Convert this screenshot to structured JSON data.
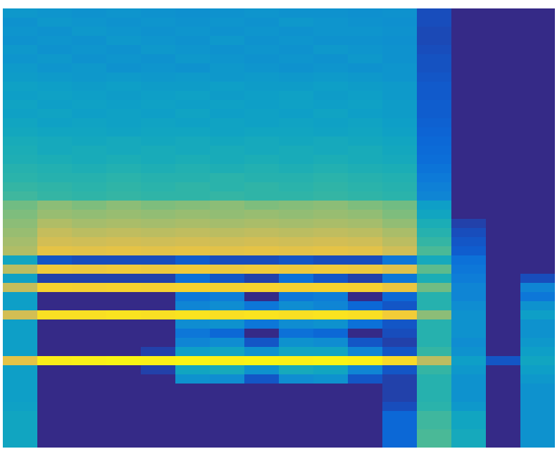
{
  "chart_data": {
    "type": "heatmap",
    "tick_labels": false,
    "clim": [
      0,
      100
    ],
    "cells": [
      [
        32,
        31,
        30,
        31,
        30,
        29,
        30,
        31,
        30,
        30,
        29,
        30,
        8,
        0,
        0,
        0
      ],
      [
        30,
        32,
        31,
        30,
        31,
        30,
        31,
        30,
        32,
        31,
        30,
        29,
        8,
        0,
        0,
        0
      ],
      [
        31,
        30,
        32,
        31,
        30,
        31,
        30,
        31,
        30,
        31,
        31,
        30,
        7,
        0,
        0,
        0
      ],
      [
        30,
        31,
        30,
        32,
        31,
        30,
        32,
        30,
        31,
        30,
        30,
        29,
        7,
        0,
        0,
        0
      ],
      [
        32,
        30,
        31,
        30,
        32,
        31,
        30,
        31,
        30,
        32,
        31,
        30,
        8,
        0,
        0,
        0
      ],
      [
        31,
        32,
        30,
        31,
        30,
        32,
        31,
        30,
        31,
        30,
        32,
        30,
        9,
        0,
        0,
        0
      ],
      [
        33,
        31,
        32,
        30,
        31,
        30,
        32,
        31,
        30,
        31,
        30,
        31,
        9,
        0,
        0,
        0
      ],
      [
        34,
        33,
        32,
        33,
        32,
        33,
        32,
        33,
        32,
        33,
        32,
        31,
        10,
        0,
        0,
        0
      ],
      [
        36,
        35,
        34,
        35,
        34,
        34,
        35,
        34,
        34,
        35,
        34,
        33,
        11,
        0,
        0,
        0
      ],
      [
        35,
        36,
        35,
        34,
        35,
        36,
        34,
        35,
        36,
        34,
        35,
        33,
        11,
        0,
        0,
        0
      ],
      [
        37,
        35,
        36,
        35,
        36,
        35,
        36,
        35,
        36,
        35,
        36,
        34,
        12,
        0,
        0,
        0
      ],
      [
        36,
        37,
        35,
        36,
        35,
        37,
        35,
        36,
        35,
        37,
        35,
        34,
        12,
        0,
        0,
        0
      ],
      [
        38,
        36,
        37,
        36,
        37,
        36,
        37,
        36,
        37,
        36,
        37,
        35,
        13,
        0,
        0,
        0
      ],
      [
        39,
        38,
        38,
        37,
        38,
        38,
        37,
        38,
        38,
        37,
        38,
        36,
        14,
        0,
        0,
        0
      ],
      [
        41,
        40,
        39,
        40,
        39,
        40,
        39,
        40,
        39,
        40,
        39,
        38,
        15,
        0,
        0,
        0
      ],
      [
        42,
        40,
        41,
        40,
        41,
        40,
        41,
        40,
        41,
        40,
        41,
        39,
        16,
        0,
        0,
        0
      ],
      [
        43,
        42,
        41,
        42,
        41,
        42,
        41,
        42,
        41,
        42,
        41,
        40,
        17,
        0,
        0,
        0
      ],
      [
        45,
        44,
        43,
        44,
        43,
        44,
        43,
        44,
        43,
        44,
        43,
        42,
        19,
        0,
        0,
        0
      ],
      [
        46,
        45,
        45,
        46,
        45,
        45,
        46,
        45,
        45,
        46,
        45,
        44,
        21,
        0,
        0,
        0
      ],
      [
        48,
        47,
        46,
        47,
        46,
        47,
        46,
        47,
        46,
        47,
        46,
        45,
        23,
        0,
        0,
        0
      ],
      [
        50,
        48,
        47,
        48,
        47,
        47,
        48,
        47,
        47,
        48,
        47,
        46,
        25,
        0,
        0,
        0
      ],
      [
        58,
        62,
        60,
        62,
        60,
        61,
        62,
        60,
        61,
        62,
        60,
        58,
        35,
        0,
        0,
        0
      ],
      [
        60,
        64,
        63,
        64,
        63,
        64,
        63,
        64,
        63,
        64,
        63,
        60,
        38,
        0,
        0,
        0
      ],
      [
        62,
        68,
        66,
        67,
        66,
        67,
        66,
        67,
        66,
        67,
        66,
        63,
        42,
        5,
        0,
        0
      ],
      [
        64,
        72,
        70,
        71,
        70,
        71,
        70,
        71,
        70,
        71,
        70,
        67,
        45,
        8,
        0,
        0
      ],
      [
        66,
        75,
        74,
        75,
        74,
        75,
        74,
        75,
        74,
        75,
        74,
        70,
        48,
        10,
        0,
        0
      ],
      [
        68,
        80,
        79,
        80,
        79,
        80,
        79,
        80,
        79,
        80,
        79,
        74,
        52,
        12,
        0,
        0
      ],
      [
        38,
        10,
        8,
        8,
        8,
        12,
        8,
        8,
        10,
        8,
        8,
        20,
        40,
        18,
        0,
        0
      ],
      [
        70,
        84,
        83,
        84,
        83,
        84,
        83,
        84,
        83,
        84,
        83,
        78,
        55,
        20,
        0,
        0
      ],
      [
        36,
        5,
        5,
        5,
        5,
        18,
        10,
        5,
        18,
        10,
        5,
        20,
        42,
        22,
        0,
        8
      ],
      [
        72,
        88,
        87,
        88,
        87,
        88,
        87,
        88,
        87,
        88,
        87,
        82,
        58,
        25,
        0,
        25
      ],
      [
        35,
        0,
        0,
        0,
        0,
        20,
        22,
        0,
        20,
        22,
        0,
        15,
        45,
        25,
        0,
        20
      ],
      [
        35,
        0,
        0,
        0,
        0,
        25,
        28,
        20,
        28,
        25,
        15,
        10,
        45,
        28,
        0,
        30
      ],
      [
        75,
        92,
        92,
        93,
        92,
        93,
        92,
        93,
        92,
        93,
        92,
        85,
        62,
        30,
        0,
        35
      ],
      [
        35,
        0,
        0,
        0,
        0,
        28,
        30,
        20,
        28,
        30,
        18,
        10,
        45,
        30,
        0,
        30
      ],
      [
        35,
        0,
        0,
        0,
        0,
        20,
        15,
        0,
        18,
        15,
        0,
        8,
        45,
        30,
        0,
        30
      ],
      [
        35,
        0,
        0,
        0,
        0,
        25,
        28,
        10,
        30,
        28,
        10,
        5,
        45,
        28,
        0,
        32
      ],
      [
        35,
        0,
        0,
        0,
        5,
        35,
        38,
        30,
        38,
        38,
        25,
        10,
        48,
        30,
        0,
        35
      ],
      [
        80,
        96,
        97,
        98,
        97,
        98,
        97,
        98,
        97,
        98,
        97,
        90,
        70,
        35,
        10,
        38
      ],
      [
        35,
        0,
        0,
        0,
        5,
        38,
        40,
        30,
        40,
        38,
        25,
        10,
        48,
        32,
        0,
        35
      ],
      [
        35,
        0,
        0,
        0,
        0,
        30,
        28,
        10,
        28,
        30,
        10,
        5,
        45,
        30,
        0,
        32
      ],
      [
        35,
        0,
        0,
        0,
        0,
        0,
        0,
        0,
        0,
        0,
        0,
        5,
        45,
        30,
        0,
        30
      ],
      [
        35,
        0,
        0,
        0,
        0,
        0,
        0,
        0,
        0,
        0,
        0,
        5,
        45,
        30,
        0,
        30
      ],
      [
        36,
        0,
        0,
        0,
        0,
        0,
        0,
        0,
        0,
        0,
        0,
        8,
        46,
        32,
        0,
        30
      ],
      [
        38,
        0,
        0,
        0,
        0,
        0,
        0,
        0,
        0,
        0,
        0,
        15,
        50,
        38,
        0,
        30
      ],
      [
        38,
        0,
        0,
        0,
        0,
        0,
        0,
        0,
        0,
        0,
        0,
        15,
        50,
        38,
        0,
        30
      ],
      [
        38,
        0,
        0,
        0,
        0,
        0,
        0,
        0,
        0,
        0,
        0,
        15,
        52,
        40,
        0,
        30
      ],
      [
        38,
        0,
        0,
        0,
        0,
        0,
        0,
        0,
        0,
        0,
        0,
        15,
        52,
        40,
        0,
        30
      ]
    ]
  }
}
